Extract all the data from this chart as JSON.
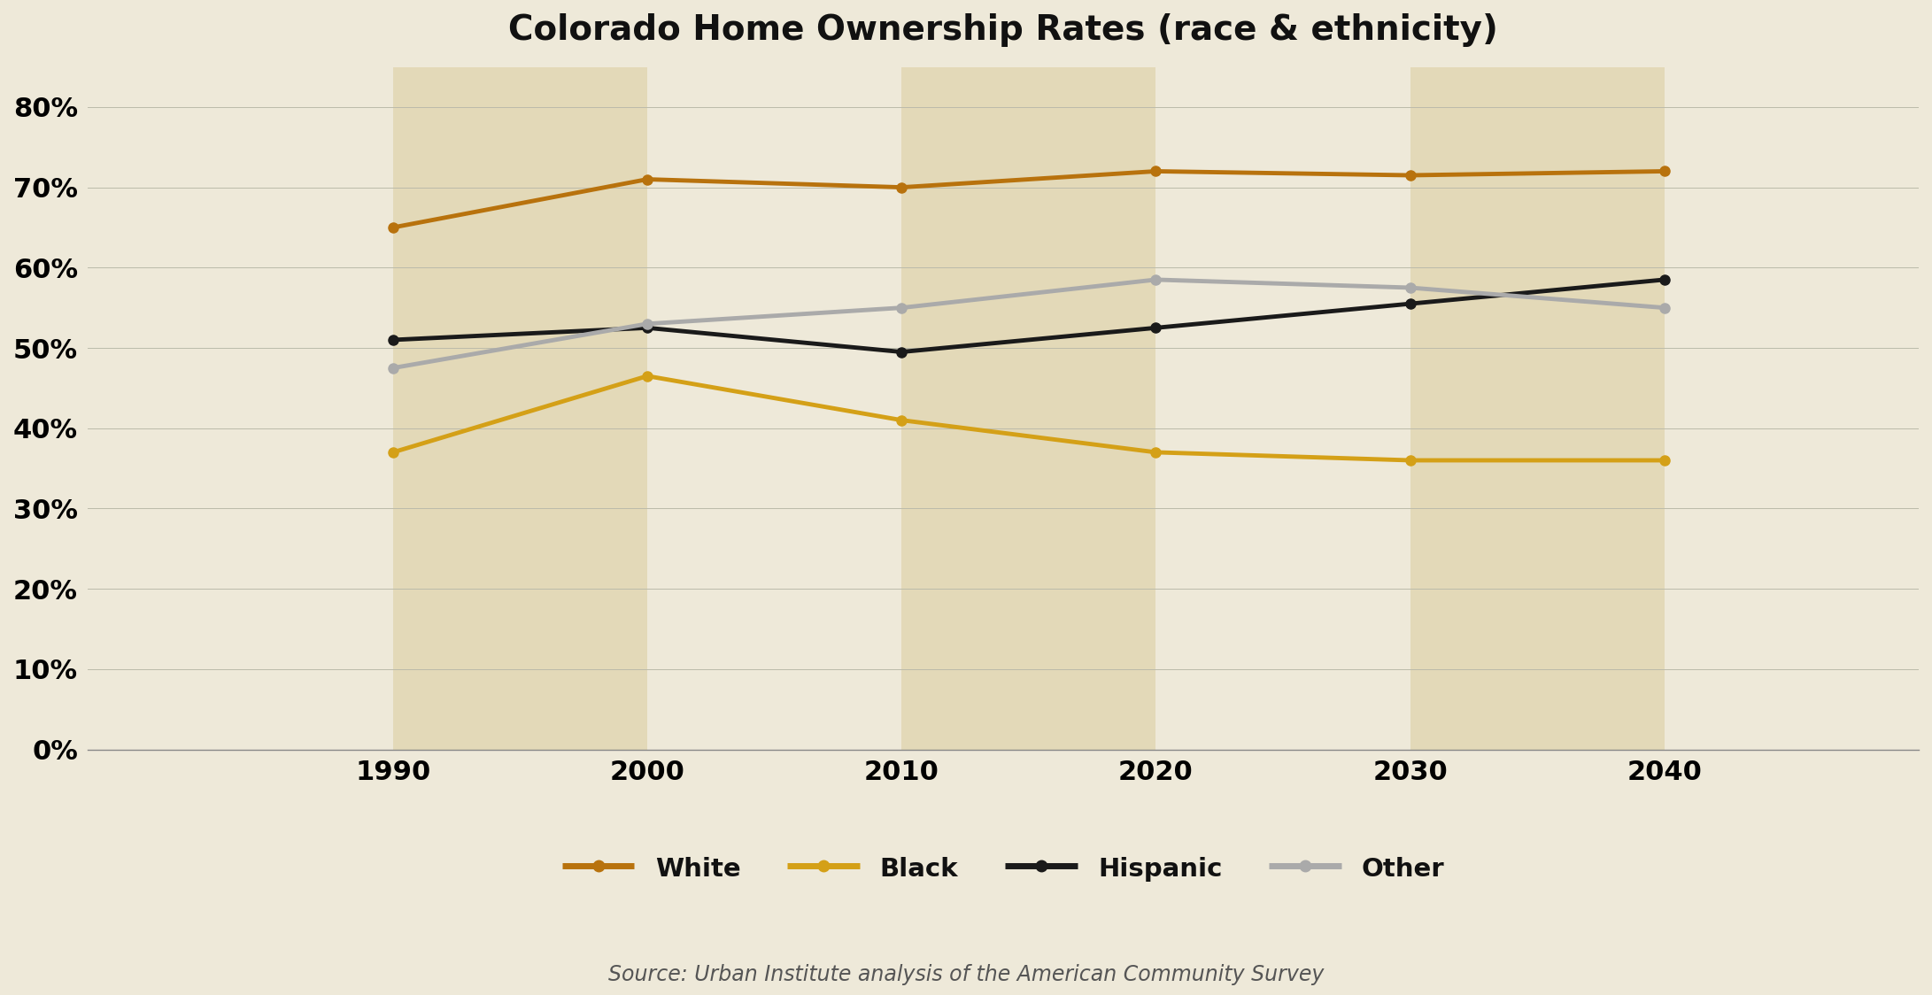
{
  "title": "Colorado Home Ownership Rates (race & ethnicity)",
  "source": "Source: Urban Institute analysis of the American Community Survey",
  "years": [
    1990,
    2000,
    2010,
    2020,
    2030,
    2040
  ],
  "series": {
    "White": [
      0.65,
      0.71,
      0.7,
      0.72,
      0.715,
      0.72
    ],
    "Black": [
      0.37,
      0.465,
      0.41,
      0.37,
      0.36,
      0.36
    ],
    "Hispanic": [
      0.51,
      0.525,
      0.495,
      0.525,
      0.555,
      0.585
    ],
    "Other": [
      0.475,
      0.53,
      0.55,
      0.585,
      0.575,
      0.55
    ]
  },
  "colors": {
    "White": "#B8720D",
    "Black": "#D4A017",
    "Hispanic": "#1a1a1a",
    "Other": "#AAAAAA"
  },
  "line_widths": {
    "White": 3.5,
    "Black": 3.5,
    "Hispanic": 3.5,
    "Other": 3.5
  },
  "marker_size": 8,
  "background_color": "#EEE9D9",
  "plot_bg_color": "#EEE9D9",
  "band_color": "#E3D9B8",
  "band_alpha": 1.0,
  "ylim": [
    0.0,
    0.85
  ],
  "xlim_left": 1978,
  "xlim_right": 2050,
  "yticks": [
    0.0,
    0.1,
    0.2,
    0.3,
    0.4,
    0.5,
    0.6,
    0.7,
    0.8
  ],
  "title_fontsize": 28,
  "tick_fontsize": 22,
  "legend_fontsize": 21,
  "source_fontsize": 17,
  "legend_order": [
    "White",
    "Black",
    "Hispanic",
    "Other"
  ]
}
